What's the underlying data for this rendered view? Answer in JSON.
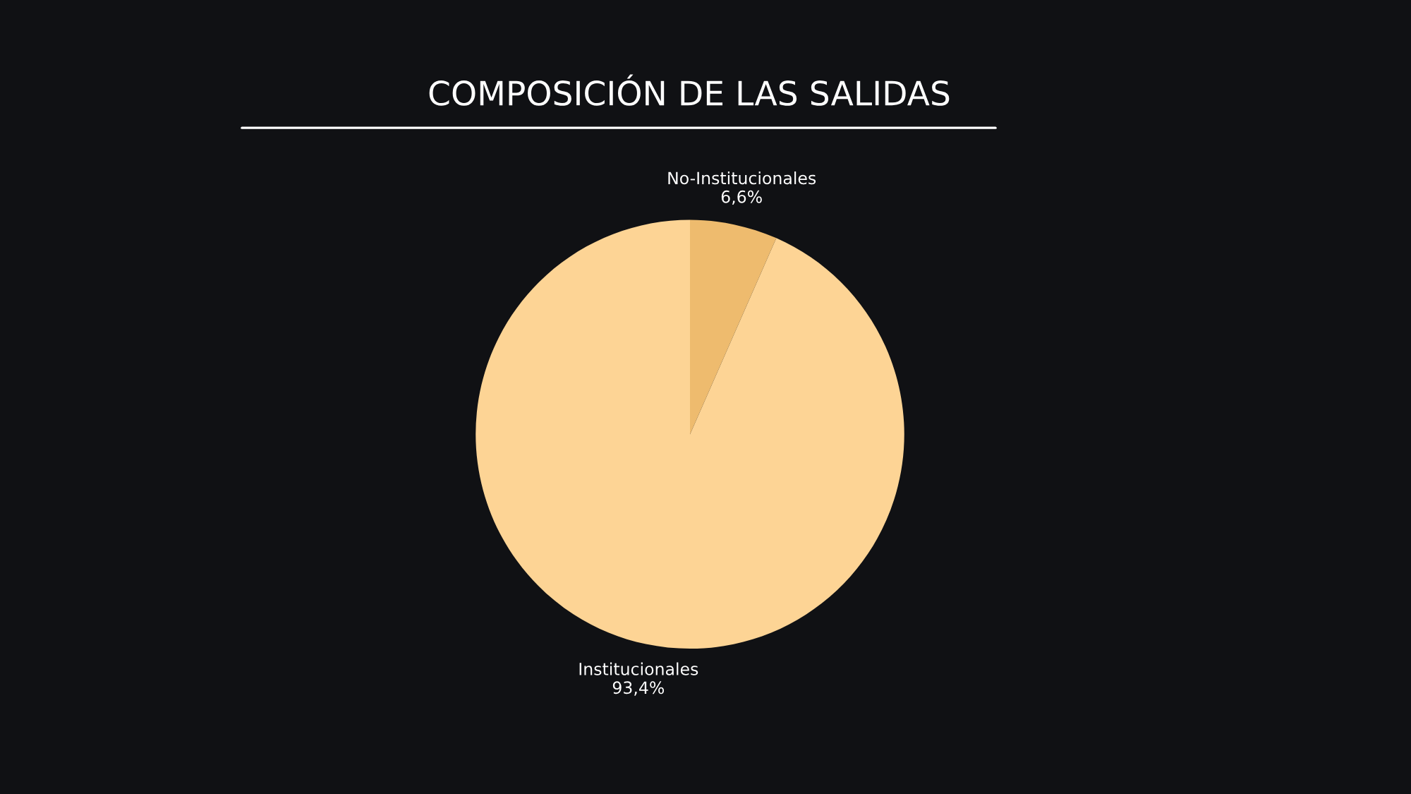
{
  "chart_data": {
    "type": "pie",
    "title": "COMPOSICIÓN DE LAS SALIDAS",
    "categories": [
      "No-Institucionales",
      "Institucionales"
    ],
    "values": [
      6.6,
      93.4
    ],
    "value_labels": [
      "6,6%",
      "93,4%"
    ],
    "colors": [
      "#eebb6e",
      "#fdd495"
    ]
  }
}
